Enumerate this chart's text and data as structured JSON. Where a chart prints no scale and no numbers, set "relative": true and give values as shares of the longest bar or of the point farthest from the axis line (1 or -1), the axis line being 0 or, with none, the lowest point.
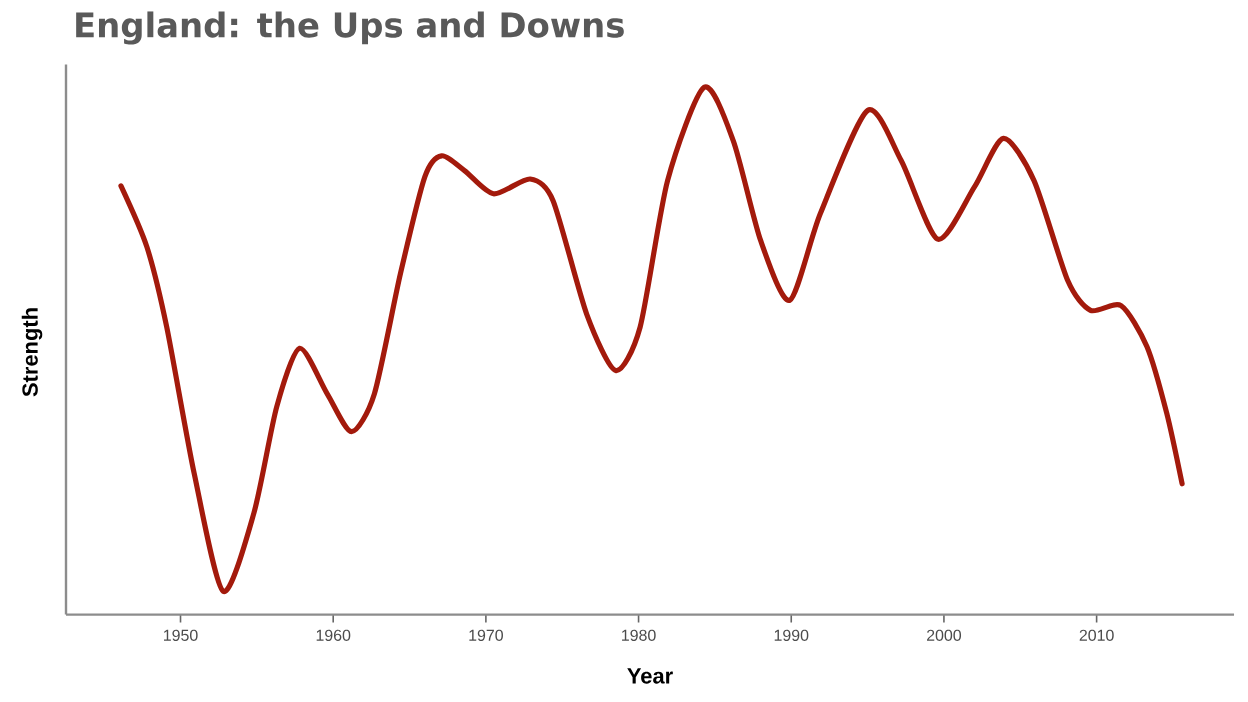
{
  "chart_data": {
    "type": "line",
    "title": "England: the Ups and Downs",
    "xlabel": "Year",
    "ylabel": "Strength",
    "relative": true,
    "x": [
      1946.1,
      1947.8,
      1949.1,
      1950.9,
      1952.8,
      1954.8,
      1956.3,
      1957.8,
      1959.6,
      1961.2,
      1962.7,
      1964.4,
      1966.0,
      1967.1,
      1968.6,
      1970.5,
      1972.9,
      1974.4,
      1976.6,
      1978.5,
      1980.1,
      1981.9,
      1984.3,
      1986.2,
      1988.0,
      1989.9,
      1991.9,
      1995.0,
      1997.2,
      1999.6,
      2002.0,
      2003.9,
      2005.9,
      2008.1,
      2009.6,
      2011.6,
      2013.3,
      2014.6,
      2015.6
    ],
    "series": [
      {
        "color": "#a31a0c",
        "values": [
          0.813,
          0.697,
          0.545,
          0.267,
          0.044,
          0.192,
          0.394,
          0.505,
          0.419,
          0.347,
          0.419,
          0.646,
          0.83,
          0.87,
          0.842,
          0.798,
          0.826,
          0.785,
          0.57,
          0.463,
          0.545,
          0.823,
          1.0,
          0.899,
          0.709,
          0.596,
          0.76,
          0.956,
          0.861,
          0.712,
          0.811,
          0.903,
          0.823,
          0.634,
          0.577,
          0.586,
          0.508,
          0.381,
          0.248
        ]
      }
    ],
    "xlim": [
      1942.5,
      2019
    ],
    "xticks": [
      1950,
      1960,
      1970,
      1980,
      1990,
      2000,
      2010
    ],
    "grid": false,
    "marker": "none",
    "line_style": "solid"
  }
}
